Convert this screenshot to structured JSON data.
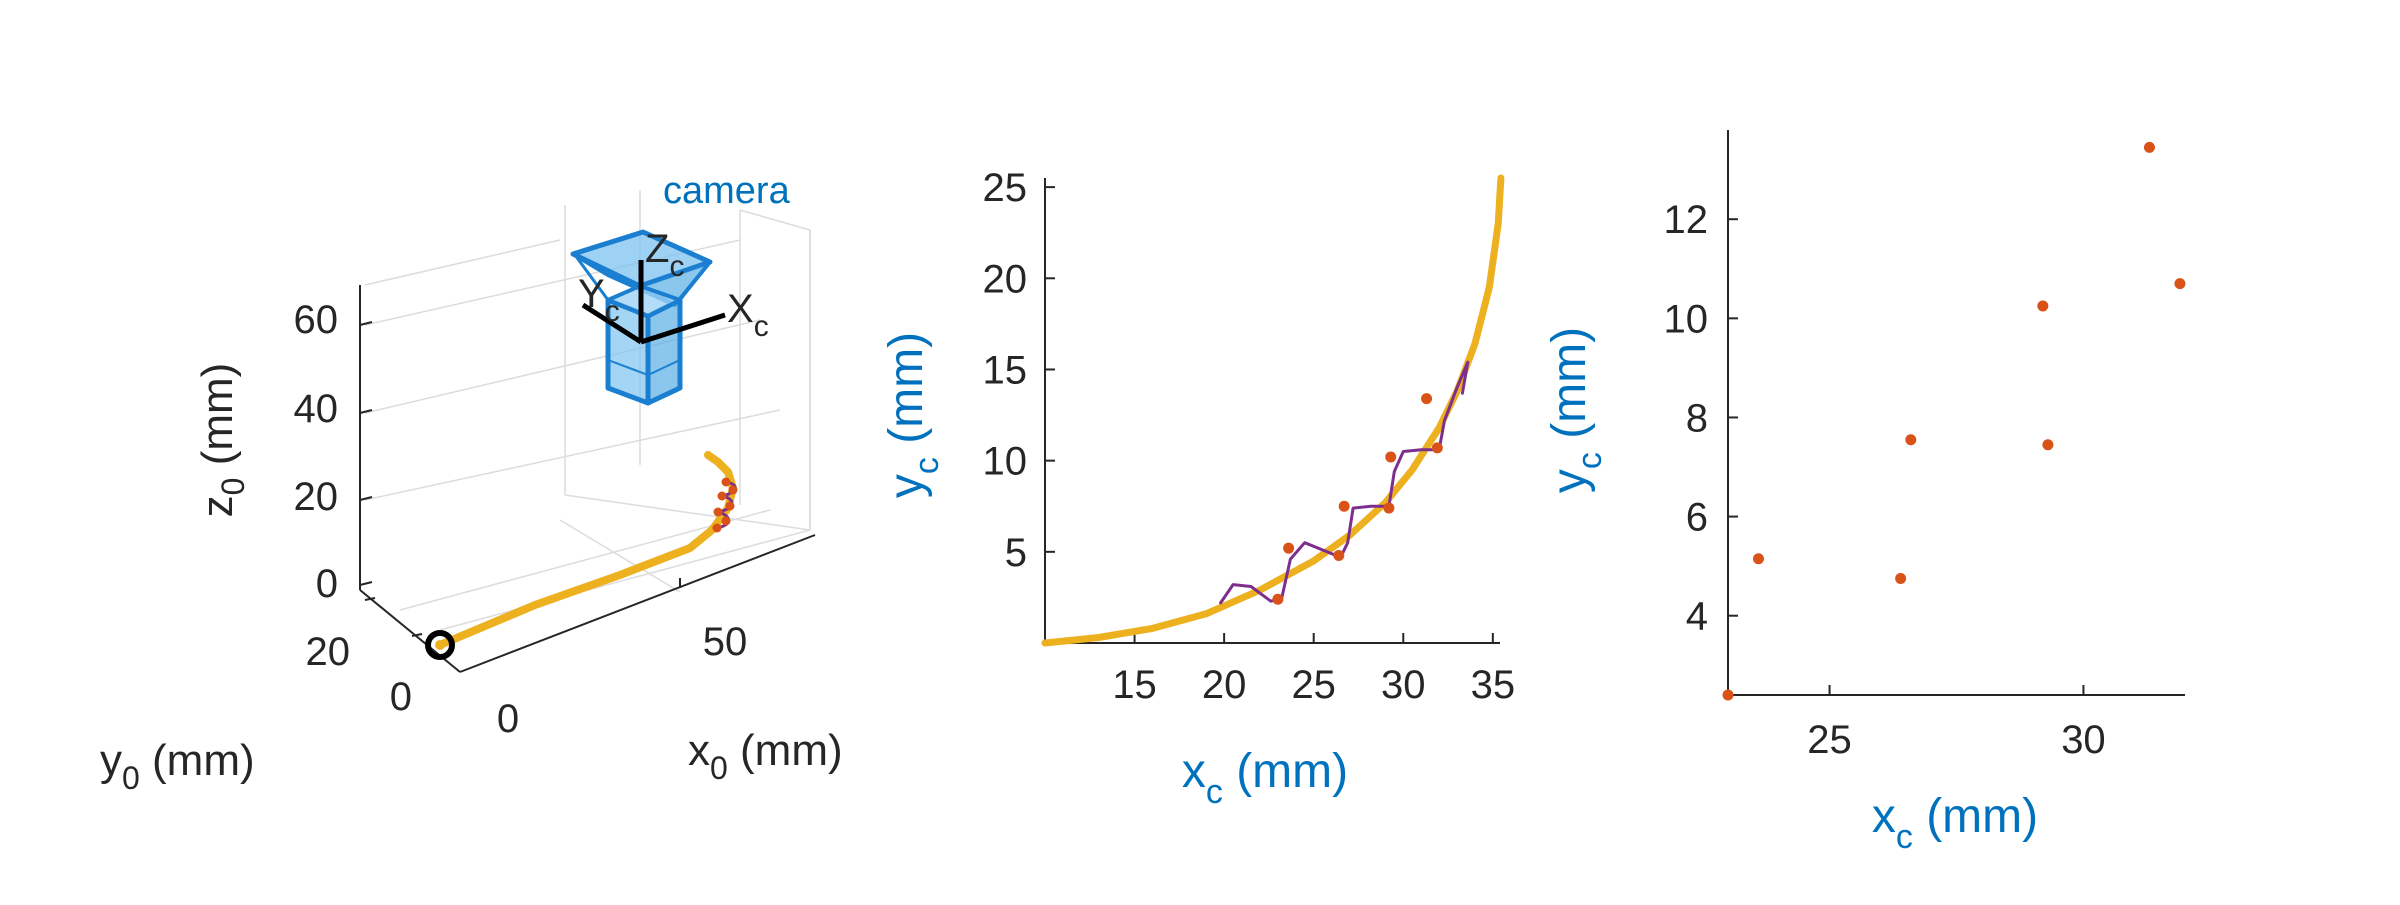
{
  "colors": {
    "axis": "#262626",
    "grid": "#dcdcdc",
    "curve": "#EDB120",
    "wave": "#7E2F8E",
    "marker": "#D95319",
    "label_blue": "#0072BD",
    "camera": "#1A7FD0",
    "camera_fill": "#7EC3F0"
  },
  "chart_data": [
    {
      "type": "line3d",
      "xlabel": "x",
      "xlabel_sub": "0",
      "xlabel_unit": " (mm)",
      "ylabel": "y",
      "ylabel_sub": "0",
      "ylabel_unit": " (mm)",
      "zlabel": "z",
      "zlabel_sub": "0",
      "zlabel_unit": " (mm)",
      "xticks": [
        "0",
        "50"
      ],
      "yticks": [
        "0",
        "20"
      ],
      "zticks": [
        "0",
        "20",
        "40",
        "60"
      ],
      "zlim": [
        0,
        70
      ],
      "camera_label": "camera",
      "camera_axes": {
        "z": "Z",
        "z_sub": "c",
        "y": "Y",
        "y_sub": "c",
        "x": "X",
        "x_sub": "c"
      }
    },
    {
      "type": "line",
      "xlabel": "x",
      "xlabel_sub": "c",
      "xlabel_unit": " (mm)",
      "ylabel": "y",
      "ylabel_sub": "c",
      "ylabel_unit": " (mm)",
      "xlim": [
        10,
        35.4
      ],
      "ylim": [
        0,
        25.5
      ],
      "xticks": [
        15,
        20,
        25,
        30,
        35
      ],
      "yticks": [
        5,
        10,
        15,
        20,
        25
      ],
      "series": [
        {
          "kind": "curve",
          "points": [
            [
              10,
              0
            ],
            [
              13,
              0.3
            ],
            [
              16,
              0.8
            ],
            [
              19,
              1.6
            ],
            [
              22,
              2.9
            ],
            [
              25,
              4.5
            ],
            [
              27,
              5.9
            ],
            [
              29,
              7.7
            ],
            [
              30.5,
              9.5
            ],
            [
              32,
              11.8
            ],
            [
              33,
              13.8
            ],
            [
              34,
              16.4
            ],
            [
              34.8,
              19.5
            ],
            [
              35.3,
              23
            ],
            [
              35.45,
              25.5
            ]
          ]
        },
        {
          "kind": "wave",
          "points": [
            [
              19.8,
              2.2
            ],
            [
              20.5,
              3.2
            ],
            [
              21.5,
              3.1
            ],
            [
              22.6,
              2.3
            ],
            [
              23.2,
              2.4
            ],
            [
              23.7,
              4.6
            ],
            [
              24.5,
              5.5
            ],
            [
              25.5,
              5.1
            ],
            [
              26.5,
              4.7
            ],
            [
              26.9,
              5.5
            ],
            [
              27.2,
              7.4
            ],
            [
              28.2,
              7.5
            ],
            [
              29.2,
              7.5
            ],
            [
              29.5,
              9.4
            ],
            [
              30,
              10.5
            ],
            [
              31,
              10.6
            ],
            [
              32,
              10.6
            ],
            [
              32.3,
              12.2
            ],
            [
              33,
              14
            ],
            [
              33.6,
              15.4
            ],
            [
              33.3,
              13.7
            ]
          ]
        },
        {
          "kind": "markers",
          "points": [
            [
              23.0,
              2.4
            ],
            [
              23.6,
              5.2
            ],
            [
              26.4,
              4.8
            ],
            [
              26.7,
              7.5
            ],
            [
              29.2,
              7.4
            ],
            [
              29.3,
              10.2
            ],
            [
              31.9,
              10.7
            ],
            [
              31.3,
              13.4
            ]
          ]
        }
      ]
    },
    {
      "type": "scatter",
      "xlabel": "x",
      "xlabel_sub": "c",
      "xlabel_unit": " (mm)",
      "ylabel": "y",
      "ylabel_sub": "c",
      "ylabel_unit": " (mm)",
      "xlim": [
        23,
        32
      ],
      "ylim": [
        2.4,
        13.8
      ],
      "xticks": [
        25,
        30
      ],
      "yticks": [
        4,
        6,
        8,
        10,
        12
      ],
      "points": [
        [
          23,
          2.4
        ],
        [
          23.6,
          5.15
        ],
        [
          26.4,
          4.75
        ],
        [
          26.6,
          7.55
        ],
        [
          29.2,
          10.25
        ],
        [
          29.3,
          7.45
        ],
        [
          31.9,
          10.7
        ],
        [
          31.3,
          13.45
        ]
      ]
    }
  ]
}
